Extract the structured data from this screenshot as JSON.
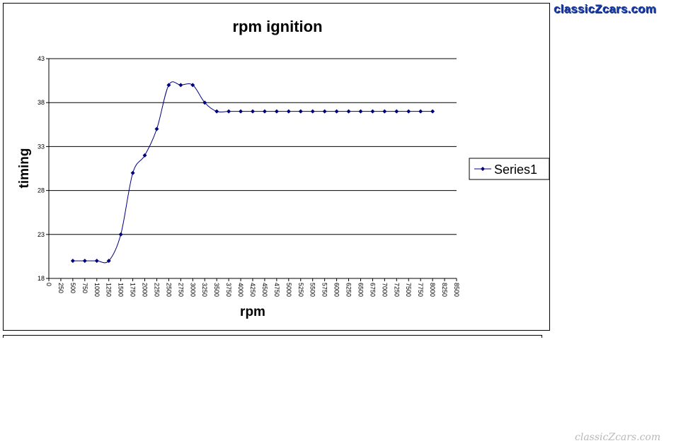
{
  "watermark": {
    "top": "classicZcars.com",
    "bottom": "classicZcars.com"
  },
  "colors": {
    "series": "#000080",
    "grid": "#000000",
    "background": "#ffffff"
  },
  "chart_data": {
    "type": "line",
    "title": "rpm ignition",
    "xlabel": "rpm",
    "ylabel": "timing",
    "ylim": [
      18,
      43
    ],
    "yticks": [
      18,
      23,
      28,
      33,
      38,
      43
    ],
    "xlim": [
      0,
      8500
    ],
    "xticks": [
      0,
      250,
      500,
      750,
      1000,
      1250,
      1500,
      1750,
      2000,
      2250,
      2500,
      2750,
      3000,
      3250,
      3500,
      3750,
      4000,
      4250,
      4500,
      4750,
      5000,
      5250,
      5500,
      5750,
      6000,
      6250,
      6500,
      6750,
      7000,
      7250,
      7500,
      7750,
      8000,
      8250,
      8500
    ],
    "grid": "horizontal",
    "legend": "right",
    "smooth": true,
    "series": [
      {
        "name": "Series1",
        "x": [
          500,
          750,
          1000,
          1250,
          1500,
          1750,
          2000,
          2250,
          2500,
          2750,
          3000,
          3250,
          3500,
          3750,
          4000,
          4250,
          4500,
          4750,
          5000,
          5250,
          5500,
          5750,
          6000,
          6250,
          6500,
          6750,
          7000,
          7250,
          7500,
          7750,
          8000
        ],
        "y": [
          20,
          20,
          20,
          20,
          23,
          30,
          32,
          35,
          40,
          40,
          40,
          38,
          37,
          37,
          37,
          37,
          37,
          37,
          37,
          37,
          37,
          37,
          37,
          37,
          37,
          37,
          37,
          37,
          37,
          37,
          37
        ]
      }
    ]
  }
}
